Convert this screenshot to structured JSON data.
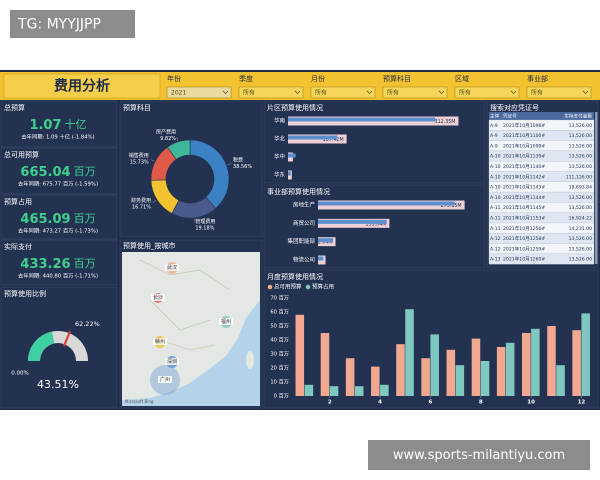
{
  "watermark": "TG: MYYJJPP",
  "footer_watermark": "www.sports-milantiyu.com",
  "header": {
    "title": "费用分析",
    "filters": [
      {
        "label": "年份",
        "value": "2021"
      },
      {
        "label": "季度",
        "value": "所有"
      },
      {
        "label": "月份",
        "value": "所有"
      },
      {
        "label": "预算科目",
        "value": "所有"
      },
      {
        "label": "区域",
        "value": "所有"
      },
      {
        "label": "事业部",
        "value": "所有"
      }
    ]
  },
  "kpis": [
    {
      "title": "总预算",
      "value": "1.07",
      "unit": "十亿",
      "compare": "去年同期: 1.09 十亿 (-1.84%)"
    },
    {
      "title": "总可用预算",
      "value": "665.04",
      "unit": "百万",
      "compare": "去年同期: 675.77 百万 (-1.59%)"
    },
    {
      "title": "预算占用",
      "value": "465.09",
      "unit": "百万",
      "compare": "去年同期: 473.27 百万 (-1.73%)"
    },
    {
      "title": "实际支付",
      "value": "433.26",
      "unit": "百万",
      "compare": "去年同期: 440.80 百万 (-1.71%)"
    }
  ],
  "map": {
    "title": "预算使用_按城市",
    "cities": [
      "武汉",
      "长沙",
      "福州",
      "赣州",
      "深圳",
      "广州"
    ],
    "credit": "Microsoft Bing"
  },
  "voucher_table": {
    "title": "搜索对应凭证号",
    "columns": [
      "主体",
      "凭证号",
      "实际支付金额"
    ],
    "rows": [
      [
        "A-9",
        "2021年10月1096#",
        "13,526.00"
      ],
      [
        "A-9",
        "2021年10月1100#",
        "13,526.00"
      ],
      [
        "A-9",
        "2021年10月1099#",
        "13,526.00"
      ],
      [
        "A-10",
        "2021年10月1139#",
        "13,526.00"
      ],
      [
        "A-10",
        "2021年10月1140#",
        "13,526.00"
      ],
      [
        "A-10",
        "2021年10月1142#",
        "111,126.00"
      ],
      [
        "A-10",
        "2021年10月1143#",
        "18,693.84"
      ],
      [
        "A-10",
        "2021年10月1144#",
        "13,526.00"
      ],
      [
        "A-11",
        "2021年10月1145#",
        "13,526.00"
      ],
      [
        "A-11",
        "2021年10月1153#",
        "16,924.22"
      ],
      [
        "A-11",
        "2021年10月1256#",
        "14,231.00"
      ],
      [
        "A-12",
        "2021年10月1258#",
        "13,526.00"
      ],
      [
        "A-12",
        "2021年10月1259#",
        "13,526.00"
      ],
      [
        "A-13",
        "2021年10月1260#",
        "13,526.00"
      ]
    ]
  },
  "chart_data": [
    {
      "type": "gauge",
      "title": "预算使用比例",
      "value": 43.51,
      "value_label": "43.51%",
      "lim": [
        0,
        100
      ],
      "ticks": [
        {
          "value": 0,
          "label": "0.00%"
        }
      ],
      "target": {
        "value": 62.22,
        "label": "62.22%"
      },
      "color": "#3fcfa0",
      "track_color": "#d9d9d9",
      "target_color": "#e0403a"
    },
    {
      "type": "donut",
      "title": "预算科目",
      "categories": [
        "税费",
        "管理费用",
        "财务费用",
        "销售费用",
        "房产费用"
      ],
      "values": [
        38.56,
        19.18,
        16.71,
        15.73,
        9.82
      ],
      "value_labels": [
        "38.56%",
        "19.18%",
        "16.71%",
        "15.73%",
        "9.82%"
      ],
      "colors": [
        "#3b82c4",
        "#4a5a8a",
        "#f2c230",
        "#e05a4a",
        "#3fb89a"
      ]
    },
    {
      "type": "hbar",
      "title": "片区预算使用情况",
      "categories": [
        "华南",
        "华北",
        "华中",
        "华东"
      ],
      "xlim": [
        0,
        350
      ],
      "series": [
        {
          "color": "#ecd0d6",
          "values": [
            312.35,
            107.42,
            9,
            7
          ],
          "value_labels": [
            "312.35M",
            "107.42M",
            null,
            null
          ]
        },
        {
          "color": "#5b8fd0",
          "values": [
            270,
            90,
            14,
            5
          ]
        }
      ]
    },
    {
      "type": "hbar",
      "title": "事业部预算使用情况",
      "categories": [
        "房地生产",
        "商贸公司",
        "集团职能部",
        "物流公司"
      ],
      "xlim": [
        0,
        300
      ],
      "series": [
        {
          "color": "#ecd0d6",
          "values": [
            273.15,
            133.04,
            32.64,
            14
          ],
          "value_labels": [
            "273.15M",
            "133.04M",
            "32.64M",
            null
          ]
        },
        {
          "color": "#5b8fd0",
          "values": [
            255,
            128,
            28,
            10
          ]
        }
      ]
    },
    {
      "type": "bar",
      "title": "月度预算使用情况",
      "x": [
        1,
        2,
        3,
        4,
        5,
        6,
        7,
        8,
        9,
        10,
        11,
        12
      ],
      "xlim": [
        0.5,
        12.5
      ],
      "xticks": [
        2,
        4,
        6,
        8,
        10,
        12
      ],
      "ylim": [
        0,
        70
      ],
      "yticks": [
        {
          "value": 0,
          "label": "0 百万"
        },
        {
          "value": 10,
          "label": "10 百万"
        },
        {
          "value": 20,
          "label": "20 百万"
        },
        {
          "value": 30,
          "label": "30 百万"
        },
        {
          "value": 40,
          "label": "40 百万"
        },
        {
          "value": 50,
          "label": "50 百万"
        },
        {
          "value": 60,
          "label": "60 百万"
        },
        {
          "value": 70,
          "label": "70 百万"
        }
      ],
      "series": [
        {
          "name": "总可用预算",
          "color": "#f0a890",
          "values": [
            58,
            45,
            27,
            21,
            37,
            27,
            33,
            41,
            35,
            45,
            50,
            47
          ]
        },
        {
          "name": "预算占用",
          "color": "#7ec8c0",
          "values": [
            8,
            7,
            7,
            8,
            62,
            44,
            22,
            25,
            38,
            48,
            22,
            59
          ]
        }
      ]
    }
  ]
}
